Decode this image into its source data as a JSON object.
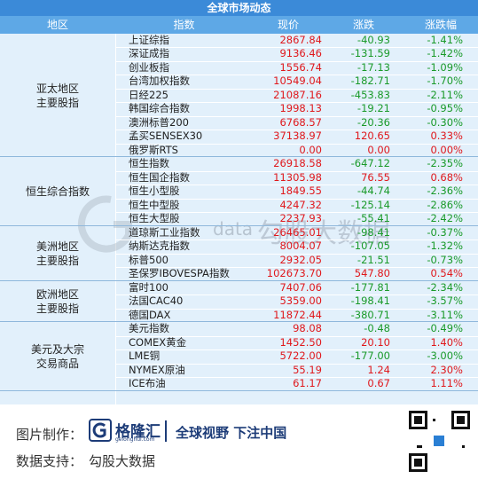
{
  "header": {
    "title": "全球市场动态",
    "columns": [
      "地区",
      "指数",
      "现价",
      "涨跌",
      "涨跌幅"
    ]
  },
  "table": {
    "groups": [
      {
        "region": [
          "亚太地区",
          "主要股指"
        ],
        "rows": [
          [
            "上证综指",
            "2867.84",
            "-40.93",
            "-1.41%"
          ],
          [
            "深证成指",
            "9136.46",
            "-131.59",
            "-1.42%"
          ],
          [
            "创业板指",
            "1556.74",
            "-17.13",
            "-1.09%"
          ],
          [
            "台湾加权指数",
            "10549.04",
            "-182.71",
            "-1.70%"
          ],
          [
            "日经225",
            "21087.16",
            "-453.83",
            "-2.11%"
          ],
          [
            "韩国综合指数",
            "1998.13",
            "-19.21",
            "-0.95%"
          ],
          [
            "澳洲标普200",
            "6768.57",
            "-20.36",
            "-0.30%"
          ],
          [
            "孟买SENSEX30",
            "37138.97",
            "120.65",
            "0.33%"
          ],
          [
            "俄罗斯RTS",
            "0.00",
            "0.00",
            "0.00%"
          ]
        ]
      },
      {
        "region": [
          "恒生综合指数"
        ],
        "rows": [
          [
            "恒生指数",
            "26918.58",
            "-647.12",
            "-2.35%"
          ],
          [
            "恒生国企指数",
            "11305.98",
            "76.55",
            "0.68%"
          ],
          [
            "恒生小型股",
            "1849.55",
            "-44.74",
            "-2.36%"
          ],
          [
            "恒生中型股",
            "4247.32",
            "-125.14",
            "-2.86%"
          ],
          [
            "恒生大型股",
            "2237.93",
            "-55.41",
            "-2.42%"
          ]
        ]
      },
      {
        "region": [
          "美洲地区",
          "主要股指"
        ],
        "rows": [
          [
            "道琼斯工业指数",
            "26465.01",
            "-98.41",
            "-0.37%"
          ],
          [
            "纳斯达克指数",
            "8004.07",
            "-107.05",
            "-1.32%"
          ],
          [
            "标普500",
            "2932.05",
            "-21.51",
            "-0.73%"
          ],
          [
            "圣保罗IBOVESPA指数",
            "102673.70",
            "547.80",
            "0.54%"
          ]
        ]
      },
      {
        "region": [
          "欧洲地区",
          "主要股指"
        ],
        "rows": [
          [
            "富时100",
            "7407.06",
            "-177.81",
            "-2.34%"
          ],
          [
            "法国CAC40",
            "5359.00",
            "-198.41",
            "-3.57%"
          ],
          [
            "德国DAX",
            "11872.44",
            "-380.71",
            "-3.11%"
          ]
        ]
      },
      {
        "region": [
          "美元及大宗",
          "交易商品"
        ],
        "rows": [
          [
            "美元指数",
            "98.08",
            "-0.48",
            "-0.49%"
          ],
          [
            "COMEX黄金",
            "1452.50",
            "20.10",
            "1.40%"
          ],
          [
            "LME铜",
            "5722.00",
            "-177.00",
            "-3.00%"
          ],
          [
            "NYMEX原油",
            "55.19",
            "1.24",
            "2.30%"
          ],
          [
            "ICE布油",
            "61.17",
            "0.67",
            "1.11%"
          ]
        ]
      }
    ]
  },
  "watermark": {
    "sub": "data",
    "text": "勾股大数据"
  },
  "footer": {
    "made_label": "图片制作：",
    "logo_name": "格隆汇",
    "logo_site": "gelonghui.com",
    "slogan": "全球视野 下注中国",
    "data_label": "数据支持：",
    "data_source": "勾股大数据"
  }
}
